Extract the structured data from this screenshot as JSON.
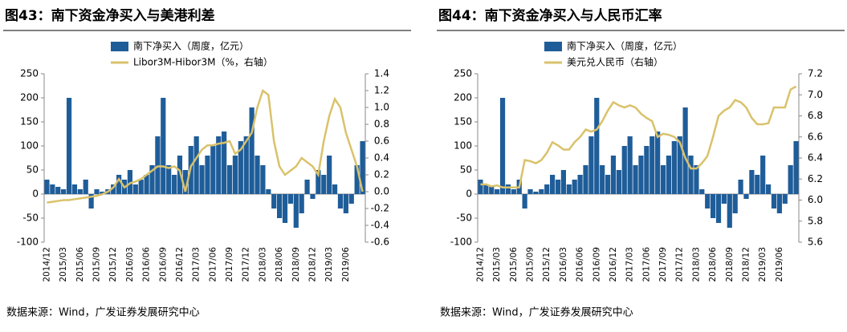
{
  "chart_data": [
    {
      "type": "bar-line",
      "title": "图43：南下资金净买入与美港利差",
      "categories": [
        "2014/12",
        null,
        null,
        "2015/03",
        null,
        null,
        "2015/06",
        null,
        null,
        "2015/09",
        null,
        null,
        "2015/12",
        null,
        null,
        "2016/03",
        null,
        null,
        "2016/06",
        null,
        null,
        "2016/09",
        null,
        null,
        "2016/12",
        null,
        null,
        "2017/03",
        null,
        null,
        "2017/06",
        null,
        null,
        "2017/09",
        null,
        null,
        "2017/12",
        null,
        null,
        "2018/03",
        null,
        null,
        "2018/06",
        null,
        null,
        "2018/09",
        null,
        null,
        "2018/12",
        null,
        null,
        "2019/03",
        null,
        null,
        "2019/06",
        null,
        null,
        null
      ],
      "series": [
        {
          "name": "南下净买入（周度，亿元）",
          "color": "#1f5d99",
          "values": [
            30,
            20,
            15,
            10,
            200,
            20,
            10,
            30,
            -30,
            10,
            5,
            10,
            20,
            40,
            30,
            50,
            20,
            30,
            40,
            60,
            120,
            200,
            60,
            40,
            80,
            50,
            100,
            120,
            60,
            80,
            100,
            120,
            130,
            60,
            80,
            110,
            120,
            180,
            80,
            60,
            10,
            -30,
            -50,
            -60,
            -20,
            -70,
            -40,
            30,
            -10,
            50,
            40,
            80,
            20,
            -30,
            -40,
            -20,
            60,
            110
          ]
        },
        {
          "name": "Libor3M-Hibor3M（%，右轴）",
          "color": "#d9c26b",
          "axis": "y2",
          "values": [
            -0.13,
            -0.12,
            -0.11,
            -0.1,
            -0.1,
            -0.09,
            -0.08,
            -0.07,
            -0.06,
            -0.05,
            -0.03,
            0.0,
            0.05,
            0.15,
            0.05,
            0.1,
            0.12,
            0.15,
            0.2,
            0.25,
            0.3,
            0.3,
            0.28,
            0.3,
            0.25,
            0.0,
            0.3,
            0.4,
            0.5,
            0.55,
            0.55,
            0.57,
            0.58,
            0.6,
            0.45,
            0.5,
            0.6,
            0.7,
            1.0,
            1.2,
            1.15,
            0.6,
            0.3,
            0.2,
            0.25,
            0.3,
            0.4,
            0.35,
            0.3,
            0.2,
            0.6,
            0.9,
            1.1,
            1.0,
            0.7,
            0.5,
            0.3,
            0.0
          ]
        }
      ],
      "ylim": [
        -100,
        250
      ],
      "yticks": [
        -100,
        -50,
        0,
        50,
        100,
        150,
        200,
        250
      ],
      "y2lim": [
        -0.6,
        1.4
      ],
      "y2ticks": [
        -0.6,
        -0.4,
        -0.2,
        {
          "value": 0,
          "label": "0.0"
        },
        0.2,
        0.4,
        0.6,
        0.8,
        {
          "value": 1,
          "label": "1.0"
        },
        1.2,
        1.4
      ],
      "source": "数据来源：Wind，广发证券发展研究中心"
    },
    {
      "type": "bar-line",
      "title": "图44：南下资金净买入与人民币汇率",
      "categories": [
        "2014/12",
        null,
        null,
        "2015/03",
        null,
        null,
        "2015/06",
        null,
        null,
        "2015/09",
        null,
        null,
        "2015/12",
        null,
        null,
        "2016/03",
        null,
        null,
        "2016/06",
        null,
        null,
        "2016/09",
        null,
        null,
        "2016/12",
        null,
        null,
        "2017/03",
        null,
        null,
        "2017/06",
        null,
        null,
        "2017/09",
        null,
        null,
        "2017/12",
        null,
        null,
        "2018/03",
        null,
        null,
        "2018/06",
        null,
        null,
        "2018/09",
        null,
        null,
        "2018/12",
        null,
        null,
        "2019/03",
        null,
        null,
        "2019/06",
        null,
        null,
        null
      ],
      "series": [
        {
          "name": "南下净买入（周度，亿元）",
          "color": "#1f5d99",
          "values": [
            30,
            20,
            15,
            10,
            200,
            20,
            10,
            30,
            -30,
            10,
            5,
            10,
            20,
            40,
            30,
            50,
            20,
            30,
            40,
            60,
            120,
            200,
            60,
            40,
            80,
            50,
            100,
            120,
            60,
            80,
            100,
            120,
            130,
            60,
            80,
            110,
            120,
            180,
            80,
            60,
            10,
            -30,
            -50,
            -60,
            -20,
            -70,
            -40,
            30,
            -10,
            50,
            40,
            80,
            20,
            -30,
            -40,
            -20,
            60,
            110
          ]
        },
        {
          "name": "美元兑人民币（右轴）",
          "color": "#d9c26b",
          "axis": "y2",
          "values": [
            6.15,
            6.15,
            6.13,
            6.14,
            6.12,
            6.12,
            6.12,
            6.12,
            6.38,
            6.37,
            6.35,
            6.38,
            6.45,
            6.55,
            6.52,
            6.48,
            6.48,
            6.55,
            6.6,
            6.67,
            6.65,
            6.67,
            6.75,
            6.85,
            6.93,
            6.9,
            6.88,
            6.9,
            6.88,
            6.82,
            6.78,
            6.75,
            6.6,
            6.63,
            6.62,
            6.6,
            6.55,
            6.4,
            6.3,
            6.3,
            6.35,
            6.42,
            6.6,
            6.8,
            6.85,
            6.88,
            6.95,
            6.93,
            6.88,
            6.78,
            6.72,
            6.72,
            6.73,
            6.88,
            6.88,
            6.88,
            7.05,
            7.08
          ]
        }
      ],
      "ylim": [
        -100,
        250
      ],
      "yticks": [
        -100,
        -50,
        0,
        50,
        100,
        150,
        200,
        250
      ],
      "y2lim": [
        5.6,
        7.2
      ],
      "y2ticks": [
        5.6,
        5.8,
        {
          "value": 6,
          "label": "6.0"
        },
        6.2,
        6.4,
        6.6,
        6.8,
        {
          "value": 7,
          "label": "7.0"
        },
        7.2
      ],
      "source": "数据来源：Wind，广发证券发展研究中心"
    }
  ]
}
